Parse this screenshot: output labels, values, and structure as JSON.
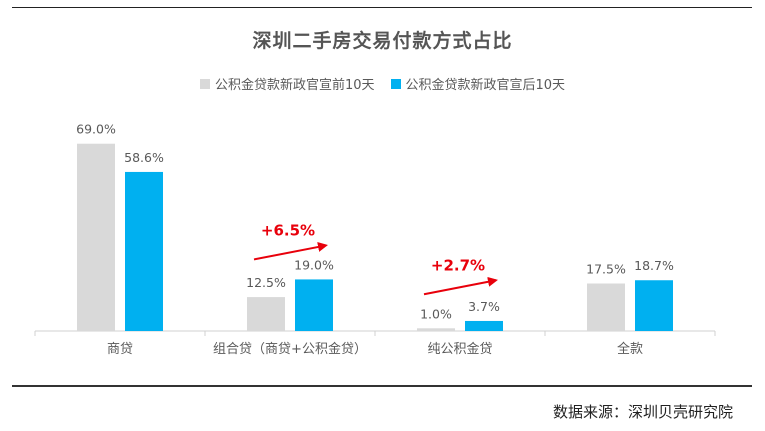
{
  "chart_data": {
    "type": "bar",
    "title": "深圳二手房交易付款方式占比",
    "categories": [
      "商贷",
      "组合贷（商贷+公积金贷）",
      "纯公积金贷",
      "全款"
    ],
    "series": [
      {
        "name": "公积金贷款新政官宣前10天",
        "values": [
          69.0,
          12.5,
          1.0,
          17.5
        ],
        "labels": [
          "69.0%",
          "12.5%",
          "1.0%",
          "17.5%"
        ],
        "color": "#d9d9d9"
      },
      {
        "name": "公积金贷款新政官宣后10天",
        "values": [
          58.6,
          19.0,
          3.7,
          18.7
        ],
        "labels": [
          "58.6%",
          "19.0%",
          "3.7%",
          "18.7%"
        ],
        "color": "#00b0f0"
      }
    ],
    "annotations": [
      {
        "category_index": 1,
        "text": "+6.5%",
        "color": "#e8000b"
      },
      {
        "category_index": 2,
        "text": "+2.7%",
        "color": "#e8000b"
      }
    ],
    "xlabel": "",
    "ylabel": "",
    "ylim": [
      0,
      70
    ],
    "grid": false,
    "legend_position": "top-center"
  },
  "source": "数据来源：深圳贝壳研究院"
}
